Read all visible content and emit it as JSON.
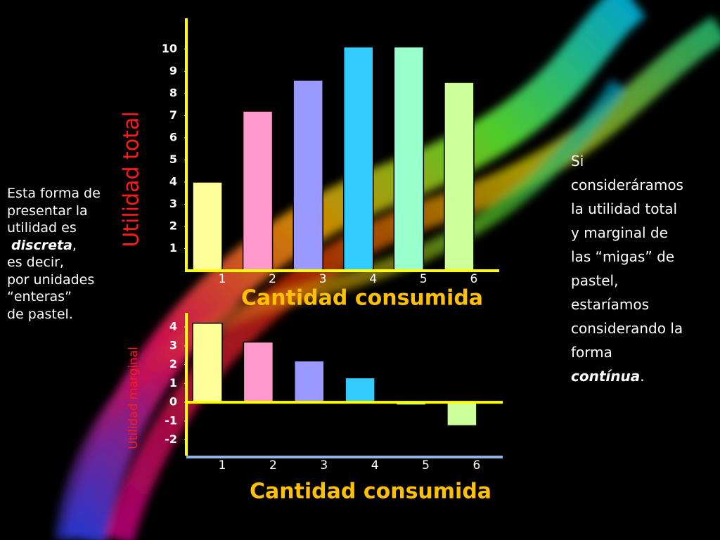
{
  "chart_data": [
    {
      "type": "bar",
      "ylabel": "Utilidad  total",
      "xlabel": "Cantidad  consumida",
      "categories": [
        "1",
        "2",
        "3",
        "4",
        "5",
        "6"
      ],
      "values": [
        4,
        7.2,
        8.6,
        10.1,
        10.1,
        8.5
      ],
      "colors": [
        "#ffff99",
        "#ff99cc",
        "#9999ff",
        "#33ccff",
        "#99ffcc",
        "#ccff99"
      ],
      "ylim": [
        0,
        11.2
      ],
      "yticks": [
        1,
        2,
        3,
        4,
        5,
        6,
        7,
        8,
        9,
        10
      ]
    },
    {
      "type": "bar",
      "ylabel": "Utilidad marginal",
      "xlabel": "Cantidad consumida",
      "categories": [
        "1",
        "2",
        "3",
        "4",
        "5",
        "6"
      ],
      "values": [
        4.2,
        3.2,
        2.2,
        1.3,
        -0.15,
        -1.25
      ],
      "colors": [
        "#ffff99",
        "#ff99cc",
        "#9999ff",
        "#33ccff",
        "#99ffcc",
        "#ccff99"
      ],
      "ylim": [
        -2.8,
        4.6
      ],
      "yticks": [
        -2,
        -1,
        0,
        1,
        2,
        3,
        4
      ]
    }
  ],
  "left_text": [
    [
      {
        "text": "Esta forma de"
      }
    ],
    [
      {
        "text": "presentar la"
      }
    ],
    [
      {
        "text": "utilidad es"
      }
    ],
    [
      {
        "text": " "
      },
      {
        "text": "discreta",
        "italic": true
      },
      {
        "text": ","
      }
    ],
    [
      {
        "text": "es decir,"
      }
    ],
    [
      {
        "text": "por unidades"
      }
    ],
    [
      {
        "text": "“enteras”"
      }
    ],
    [
      {
        "text": "de pastel."
      }
    ]
  ],
  "right_text": [
    [
      {
        "text": "Si"
      }
    ],
    [
      {
        "text": "consideráramos"
      }
    ],
    [
      {
        "text": "la utilidad total"
      }
    ],
    [
      {
        "text": "y marginal de"
      }
    ],
    [
      {
        "text": "las “migas” de"
      }
    ],
    [
      {
        "text": "pastel,"
      }
    ],
    [
      {
        "text": "estaríamos"
      }
    ],
    [
      {
        "text": "considerando la"
      }
    ],
    [
      {
        "text": "forma"
      }
    ],
    [
      {
        "text": "contínua",
        "italic": true
      },
      {
        "text": "."
      }
    ]
  ]
}
